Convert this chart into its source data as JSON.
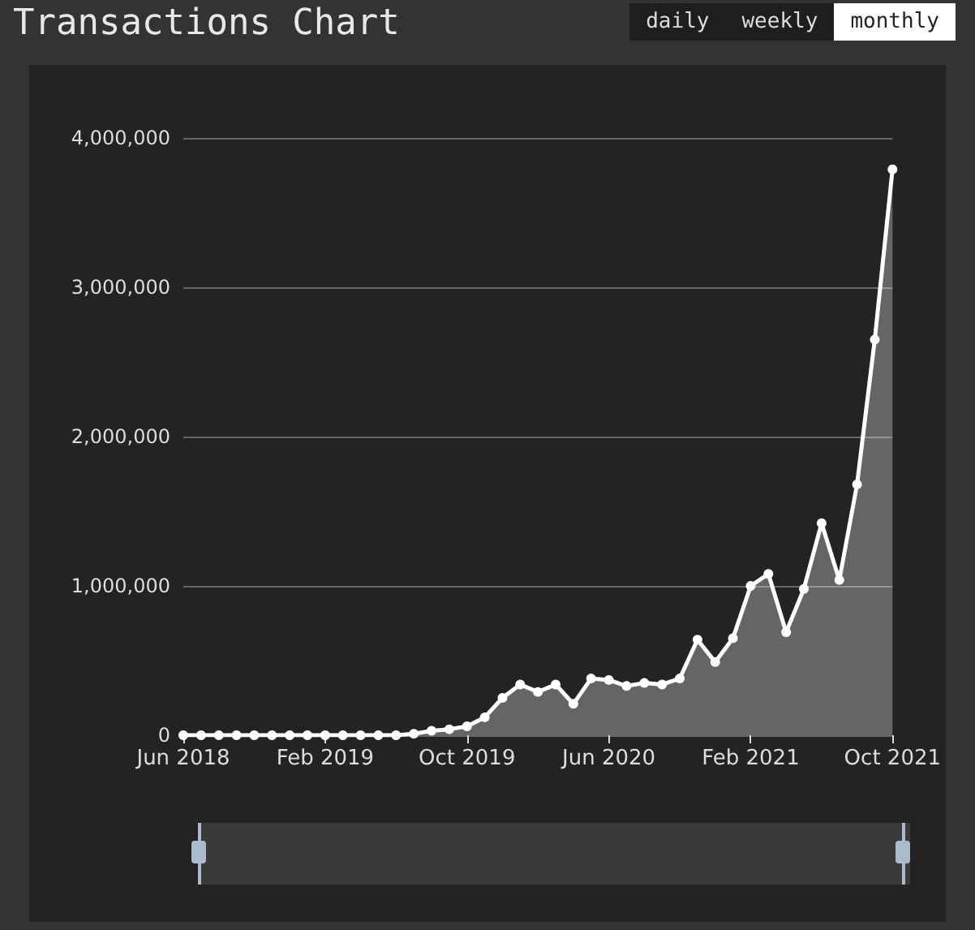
{
  "chart_data": {
    "type": "area",
    "title": "Transactions Chart",
    "annotations": [
      "daily",
      "weekly",
      "monthly"
    ],
    "categories": [
      "Jun 2018",
      null,
      null,
      null,
      null,
      null,
      null,
      null,
      "Feb 2019",
      null,
      null,
      null,
      null,
      null,
      null,
      null,
      "Oct 2019",
      null,
      null,
      null,
      null,
      null,
      null,
      null,
      "Jun 2020",
      null,
      null,
      null,
      null,
      null,
      null,
      null,
      "Feb 2021",
      null,
      null,
      null,
      null,
      null,
      null,
      null,
      "Oct 2021"
    ],
    "series": [
      {
        "color": "#ffffff",
        "values": [
          0,
          0,
          0,
          0,
          0,
          0,
          0,
          0,
          0,
          0,
          0,
          0,
          0,
          10000,
          30000,
          40000,
          60000,
          120000,
          250000,
          340000,
          290000,
          340000,
          210000,
          380000,
          370000,
          330000,
          350000,
          340000,
          380000,
          640000,
          490000,
          650000,
          1000000,
          1080000,
          690000,
          980000,
          1420000,
          1040000,
          1680000,
          2650000,
          3790000
        ]
      }
    ],
    "ylim": [
      0,
      4000000
    ],
    "yticks": [
      0,
      {
        "value": 1000000,
        "label": "1,000,000"
      },
      {
        "value": 2000000,
        "label": "2,000,000"
      },
      {
        "value": 3000000,
        "label": "3,000,000"
      },
      {
        "value": 4000000,
        "label": "4,000,000"
      }
    ],
    "grid": "y",
    "marker": "circle",
    "line_style": "solid"
  }
}
